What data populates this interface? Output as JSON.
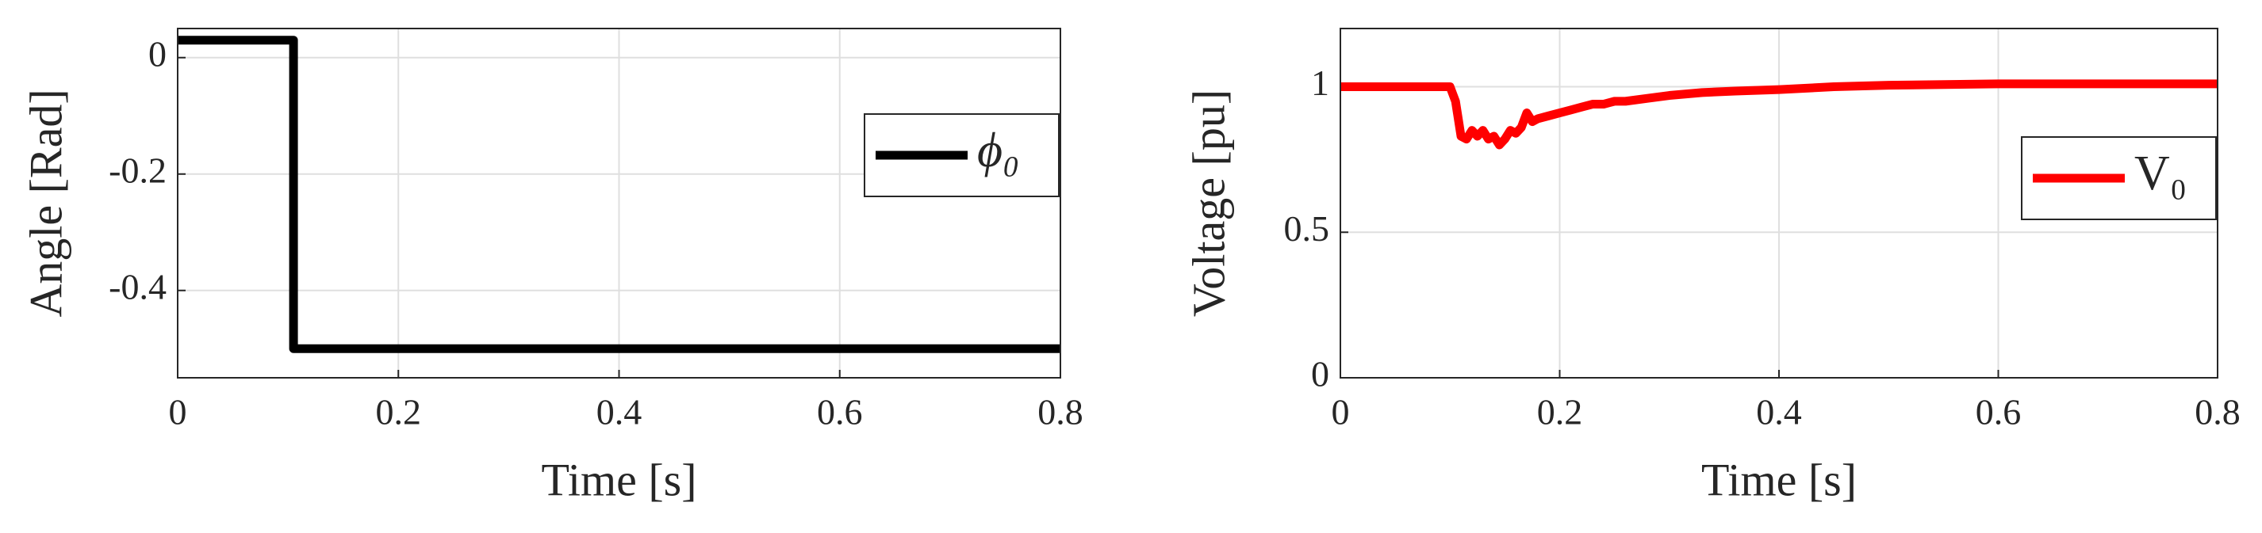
{
  "chart_data": [
    {
      "type": "line",
      "xlabel": "Time [s]",
      "ylabel": "Angle [Rad]",
      "x": [
        0,
        0.105,
        0.105,
        0.8
      ],
      "series": [
        {
          "name": "ϕ₀",
          "color": "#000000",
          "values": [
            0.03,
            0.03,
            -0.5,
            -0.5
          ]
        }
      ],
      "xlim": [
        0,
        0.8
      ],
      "xticks": [
        0,
        0.2,
        0.4,
        0.6,
        0.8
      ],
      "ylim": [
        -0.55,
        0.05
      ],
      "yticks": [
        {
          "value": 0,
          "label": "0"
        },
        {
          "value": -0.2,
          "label": "-0.2"
        },
        {
          "value": -0.4,
          "label": "-0.4"
        }
      ],
      "grid": true,
      "legend": "upper right"
    },
    {
      "type": "line",
      "xlabel": "Time [s]",
      "ylabel": "Voltage [pu]",
      "x": [
        0,
        0.1,
        0.105,
        0.11,
        0.115,
        0.12,
        0.125,
        0.13,
        0.135,
        0.14,
        0.145,
        0.15,
        0.155,
        0.16,
        0.165,
        0.17,
        0.175,
        0.18,
        0.19,
        0.2,
        0.21,
        0.22,
        0.23,
        0.24,
        0.25,
        0.26,
        0.28,
        0.3,
        0.33,
        0.36,
        0.4,
        0.45,
        0.5,
        0.6,
        0.7,
        0.8
      ],
      "series": [
        {
          "name": "V₀",
          "color": "#ff0000",
          "values": [
            1.0,
            1.0,
            0.95,
            0.83,
            0.82,
            0.85,
            0.83,
            0.85,
            0.82,
            0.83,
            0.8,
            0.82,
            0.85,
            0.84,
            0.86,
            0.91,
            0.88,
            0.89,
            0.9,
            0.91,
            0.92,
            0.93,
            0.94,
            0.94,
            0.95,
            0.95,
            0.96,
            0.97,
            0.98,
            0.985,
            0.99,
            1.0,
            1.005,
            1.01,
            1.01,
            1.01
          ]
        }
      ],
      "xlim": [
        0,
        0.8
      ],
      "xticks": [
        0,
        0.2,
        0.4,
        0.6,
        0.8
      ],
      "ylim": [
        0,
        1.2
      ],
      "yticks": [
        0,
        0.5,
        1
      ],
      "grid": true,
      "legend": "center right"
    }
  ]
}
